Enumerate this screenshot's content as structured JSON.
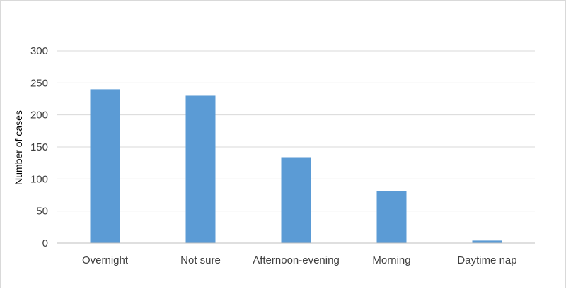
{
  "chart_data": {
    "type": "bar",
    "categories": [
      "Overnight",
      "Not sure",
      "Afternoon-evening",
      "Morning",
      "Daytime nap"
    ],
    "values": [
      240,
      230,
      134,
      81,
      4
    ],
    "title": "",
    "xlabel": "",
    "ylabel": "Number of cases",
    "ylim": [
      0,
      300
    ],
    "yticks": [
      0,
      50,
      100,
      150,
      200,
      250,
      300
    ],
    "grid": true,
    "legend": "none",
    "colors": {
      "bar": "#5b9bd5"
    }
  }
}
